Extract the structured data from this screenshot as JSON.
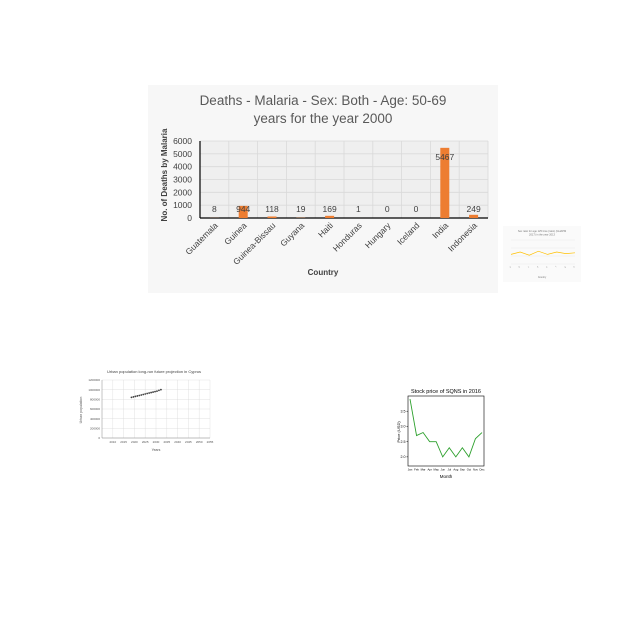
{
  "charts": [
    {
      "type": "bar",
      "title_line1": "Deaths - Malaria - Sex: Both - Age: 50-69",
      "title_line2": "years for the year 2000",
      "xlabel": "Country",
      "ylabel": "No. of Deaths by Malaria",
      "ylim": [
        0,
        6000
      ],
      "yticks": [
        "0",
        "1000",
        "2000",
        "3000",
        "4000",
        "5000",
        "6000"
      ],
      "categories": [
        "Guatemala",
        "Guinea",
        "Guinea-Bissau",
        "Guyana",
        "Haiti",
        "Honduras",
        "Hungary",
        "Iceland",
        "India",
        "Indonesia"
      ],
      "values": [
        8,
        944,
        118,
        19,
        169,
        1,
        0,
        0,
        5467,
        249
      ],
      "value_labels": [
        "8",
        "944",
        "118",
        "19",
        "169",
        "1",
        "0",
        "0",
        "5467",
        "249"
      ],
      "grid": true,
      "colors": {
        "bar": "#ed7d31",
        "grid": "#d9d9d9",
        "text": "#595959",
        "background": "#f7f7f7"
      }
    },
    {
      "type": "line",
      "title_line1": "Sex ratio for age 125 time (ratio) (GHAPM",
      "title_line2": "2017) in the year 2013",
      "xlabel": "Country",
      "x": [
        "a",
        "b",
        "c",
        "d",
        "e",
        "f",
        "g",
        "h"
      ],
      "y": [
        1.02,
        1.05,
        1.01,
        1.06,
        1.02,
        1.05,
        1.03,
        1.04
      ],
      "ylim": [
        0.9,
        1.2
      ],
      "colors": {
        "line": "#ffc000"
      }
    },
    {
      "type": "scatter",
      "title": "Urban population long-run future projection in Cyprus",
      "xlabel": "Years",
      "ylabel": "Urban population",
      "xlim": [
        2000,
        2055
      ],
      "ylim": [
        0,
        1200000
      ],
      "xticks": [
        "2010",
        "2015",
        "2020",
        "2025",
        "2030",
        "2035",
        "2040",
        "2045",
        "2050",
        "2055"
      ],
      "yticks": [
        "0",
        "200000",
        "400000",
        "600000",
        "800000",
        "1000000",
        "1200000"
      ],
      "x": [
        2015,
        2016,
        2017,
        2018,
        2019,
        2020,
        2021,
        2022,
        2023,
        2024,
        2025,
        2026,
        2027,
        2028,
        2029,
        2030
      ],
      "y": [
        840000,
        850000,
        860000,
        870000,
        880000,
        890000,
        900000,
        910000,
        920000,
        930000,
        940000,
        950000,
        960000,
        970000,
        985000,
        1000000
      ],
      "grid": true,
      "colors": {
        "point": "#404040",
        "grid": "#d9d9d9"
      }
    },
    {
      "type": "line",
      "title": "Stock price of SQNS in 2016",
      "xlabel": "Month",
      "ylabel": "Price (USD)",
      "categories": [
        "Jan",
        "Feb",
        "Mar",
        "Apr",
        "May",
        "Jun",
        "Jul",
        "Aug",
        "Sep",
        "Oct",
        "Nov",
        "Dec"
      ],
      "values": [
        3.9,
        2.7,
        2.8,
        2.5,
        2.5,
        2.0,
        2.3,
        2.0,
        2.3,
        2.0,
        2.6,
        2.8
      ],
      "ylim": [
        1.7,
        4.0
      ],
      "yticks": [
        "2.0",
        "2.5",
        "3.0",
        "3.5"
      ],
      "colors": {
        "line": "#2ca02c"
      }
    }
  ]
}
